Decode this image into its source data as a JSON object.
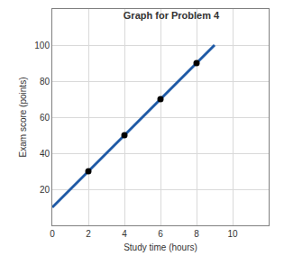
{
  "chart_data": {
    "type": "line",
    "title": "Graph for Problem 4",
    "x_label": "Study time (hours)",
    "y_label": "Exam score (points)",
    "series": [
      {
        "type": "line",
        "color": "#1f5aa6",
        "x": [
          0,
          9
        ],
        "values": [
          10,
          100
        ]
      },
      {
        "type": "scatter",
        "color": "#000000",
        "marker": "circle",
        "x": [
          2,
          4,
          6,
          8
        ],
        "values": [
          30,
          50,
          70,
          90
        ]
      }
    ],
    "xlim": [
      0,
      12
    ],
    "xticks": [
      0,
      2,
      4,
      6,
      8,
      10
    ],
    "ylim": [
      0,
      120
    ],
    "yticks": [
      20,
      40,
      60,
      80,
      100
    ],
    "grid": true
  }
}
